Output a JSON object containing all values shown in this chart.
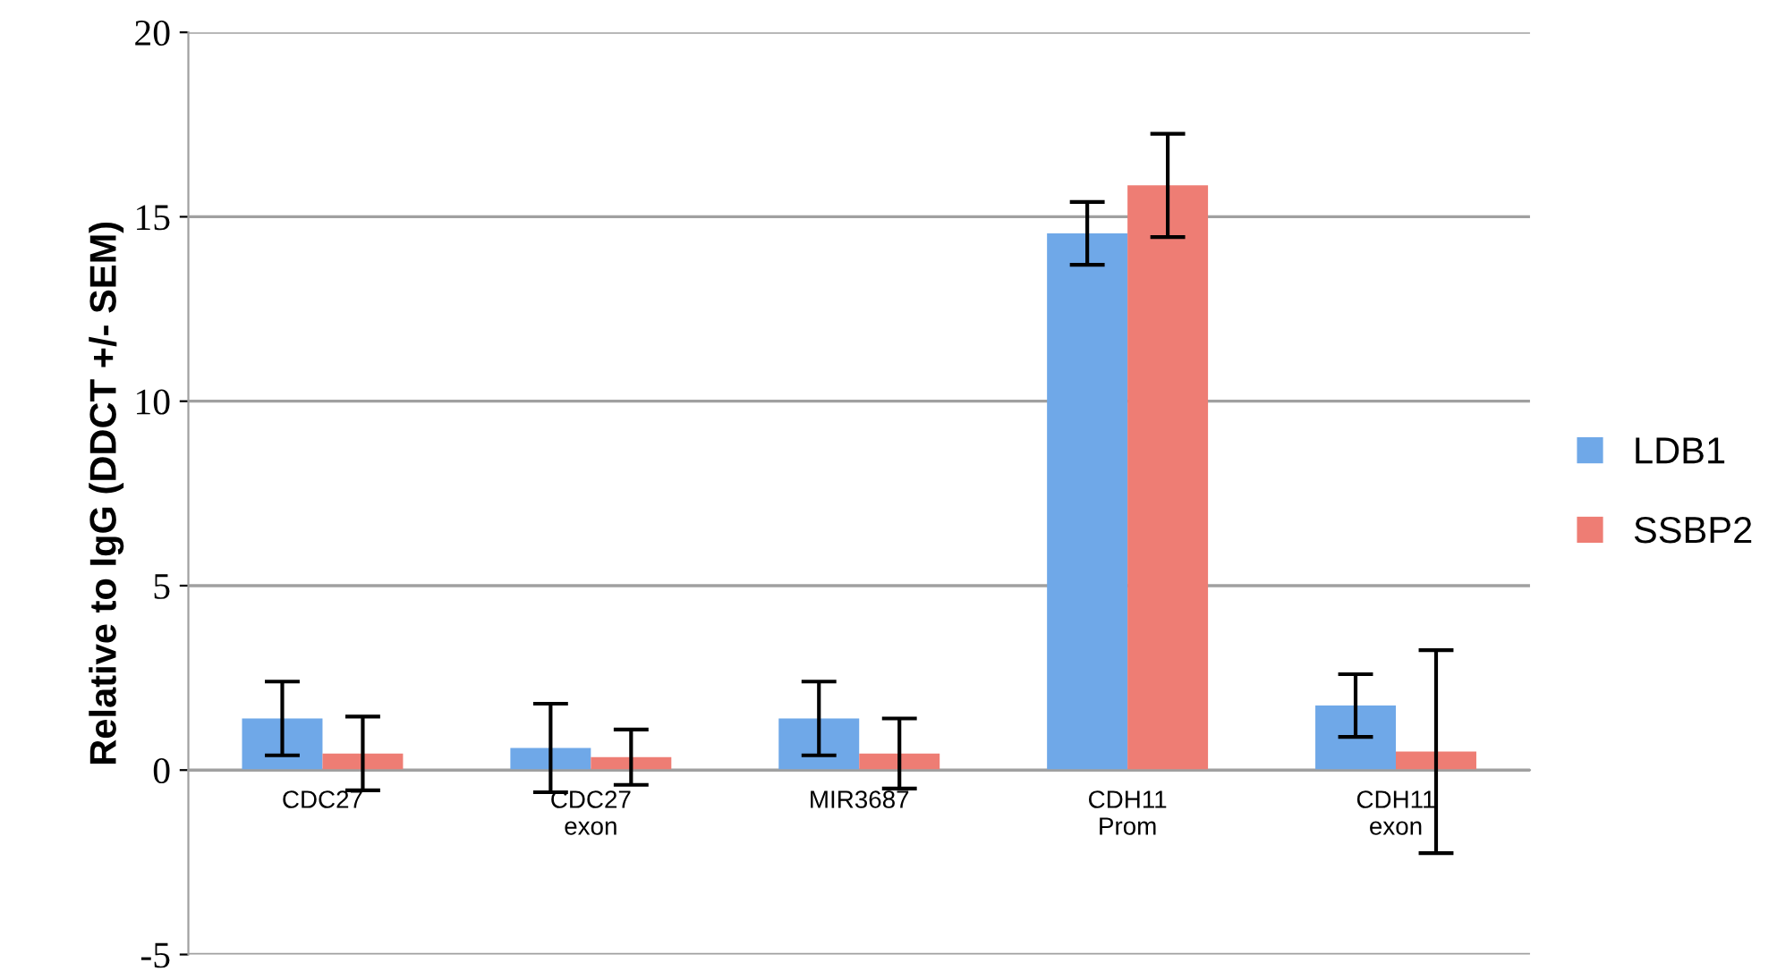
{
  "chart_data": {
    "type": "bar",
    "ylabel": "Relative to IgG (DDCT +/- SEM)",
    "categories": [
      "CDC27",
      "CDC27\nexon",
      "MIR3687",
      "CDH11\nProm",
      "CDH11\nexon"
    ],
    "series": [
      {
        "name": "LDB1",
        "color": "#6fa8e8",
        "values": [
          1.4,
          0.6,
          1.4,
          14.55,
          1.75
        ],
        "errors": [
          1.0,
          1.2,
          1.0,
          0.85,
          0.85
        ]
      },
      {
        "name": "SSBP2",
        "color": "#ee7d74",
        "values": [
          0.45,
          0.35,
          0.45,
          15.85,
          0.5
        ],
        "errors": [
          1.0,
          0.75,
          0.95,
          1.4,
          2.75
        ]
      }
    ],
    "ylim": [
      -5,
      20
    ],
    "yticks": [
      -5,
      0,
      5,
      10,
      15,
      20
    ],
    "grid": "y",
    "legend": "right"
  }
}
